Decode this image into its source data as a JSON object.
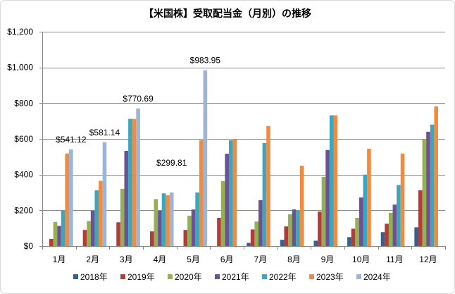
{
  "chart_data": {
    "type": "bar",
    "title": "【米国株】受取配当金（月別）の推移",
    "categories": [
      "1月",
      "2月",
      "3月",
      "4月",
      "5月",
      "6月",
      "7月",
      "8月",
      "9月",
      "10月",
      "11月",
      "12月"
    ],
    "ylim": [
      0,
      1200
    ],
    "yticks": [
      0,
      200,
      400,
      600,
      800,
      1000,
      1200
    ],
    "ytick_labels": [
      "$0",
      "$200",
      "$400",
      "$600",
      "$800",
      "$1,000",
      "$1,200"
    ],
    "grid": true,
    "legend": "bottom",
    "series": [
      {
        "name": "2018年",
        "color": "#36608f",
        "values": [
          null,
          null,
          null,
          null,
          null,
          null,
          18,
          35,
          30,
          50,
          78,
          105
        ]
      },
      {
        "name": "2019年",
        "color": "#b03d39",
        "values": [
          40,
          90,
          133,
          82,
          90,
          158,
          93,
          110,
          193,
          97,
          125,
          312
        ]
      },
      {
        "name": "2020年",
        "color": "#94b052",
        "values": [
          135,
          140,
          320,
          263,
          170,
          363,
          137,
          178,
          387,
          158,
          186,
          598
        ]
      },
      {
        "name": "2021年",
        "color": "#6d5190",
        "values": [
          113,
          198,
          533,
          198,
          205,
          517,
          257,
          205,
          538,
          272,
          232,
          640
        ]
      },
      {
        "name": "2022年",
        "color": "#3ba6c0",
        "values": [
          200,
          312,
          712,
          295,
          300,
          592,
          577,
          200,
          732,
          400,
          342,
          680
        ]
      },
      {
        "name": "2023年",
        "color": "#f08c3f",
        "values": [
          518,
          365,
          712,
          285,
          593,
          598,
          672,
          450,
          732,
          545,
          518,
          782
        ]
      },
      {
        "name": "2024年",
        "color": "#9db5db",
        "values": [
          541.12,
          581.14,
          770.69,
          299.81,
          983.95,
          null,
          null,
          null,
          null,
          null,
          null,
          null
        ],
        "data_labels": [
          "$541.12",
          "$581.14",
          "$770.69",
          "$299.81",
          "$983.95",
          null,
          null,
          null,
          null,
          null,
          null,
          null
        ]
      }
    ]
  }
}
